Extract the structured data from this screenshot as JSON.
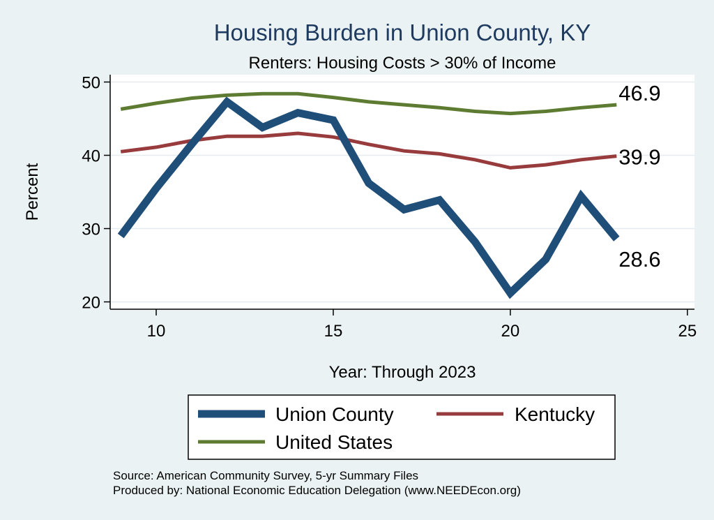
{
  "chart_data": {
    "type": "line",
    "title": "Housing Burden in Union County, KY",
    "subtitle": "Renters: Housing Costs > 30% of Income",
    "xlabel": "Year: Through 2023",
    "ylabel": "Percent",
    "xlim": [
      8.7,
      25.2
    ],
    "ylim": [
      19,
      51
    ],
    "xticks": [
      10,
      15,
      20,
      25
    ],
    "yticks": [
      20,
      30,
      40,
      50
    ],
    "grid": true,
    "x": [
      9,
      10,
      11,
      12,
      13,
      14,
      15,
      16,
      17,
      18,
      19,
      20,
      21,
      22,
      23
    ],
    "series": [
      {
        "name": "Union County",
        "color": "#1f4e79",
        "values": [
          29.0,
          35.5,
          41.5,
          47.3,
          43.8,
          45.8,
          44.8,
          36.2,
          32.6,
          33.9,
          28.2,
          21.2,
          25.8,
          34.4,
          28.6
        ],
        "end_label": "28.6"
      },
      {
        "name": "Kentucky",
        "color": "#983b3d",
        "values": [
          40.5,
          41.1,
          42.0,
          42.6,
          42.6,
          43.0,
          42.5,
          41.5,
          40.6,
          40.2,
          39.4,
          38.3,
          38.7,
          39.4,
          39.9
        ],
        "end_label": "39.9"
      },
      {
        "name": "United States",
        "color": "#5e7b32",
        "values": [
          46.3,
          47.1,
          47.8,
          48.2,
          48.4,
          48.4,
          47.9,
          47.3,
          46.9,
          46.5,
          46.0,
          45.7,
          46.0,
          46.5,
          46.9
        ],
        "end_label": "46.9"
      }
    ],
    "legend": {
      "position": "bottom",
      "order": [
        "Union County",
        "Kentucky",
        "United States"
      ]
    }
  },
  "notes": {
    "source": "Source: American Community Survey, 5-yr Summary Files",
    "produced_by": "Produced by: National Economic Education Delegation (www.NEEDEcon.org)"
  }
}
